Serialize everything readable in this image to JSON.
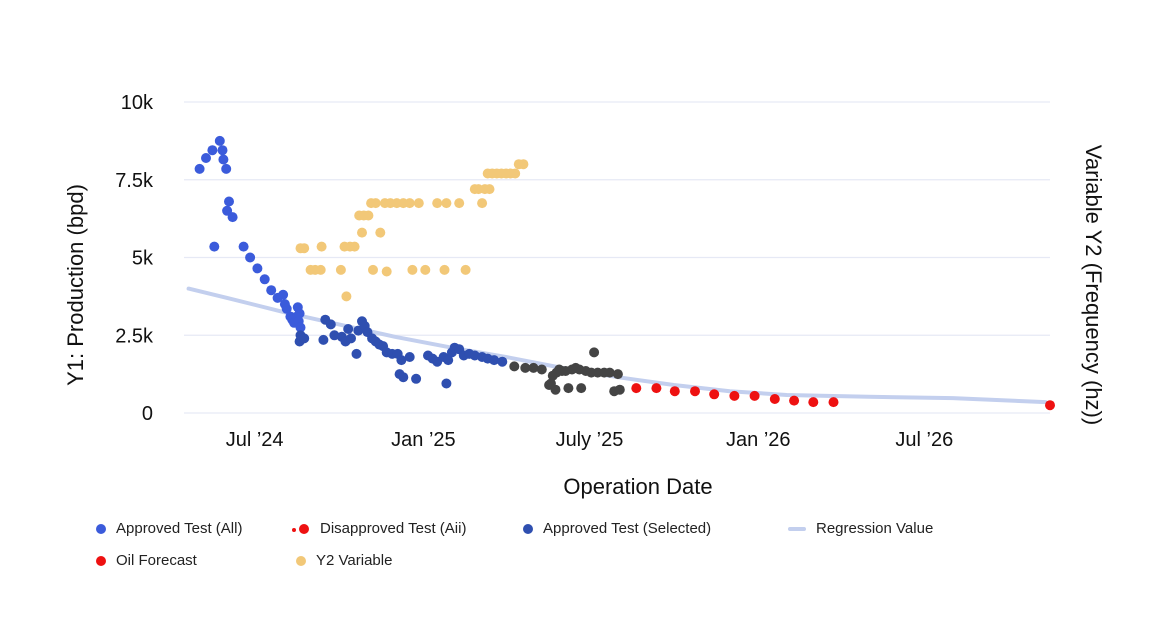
{
  "chart_data": {
    "type": "scatter",
    "xlabel": "Operation Date",
    "ylabel": "Y1: Production (bpd)",
    "y2label": "Variable Y2 (Frequency (hz))",
    "ylim": [
      0,
      10000
    ],
    "x_range": [
      "2024-04-15",
      "2026-11-15"
    ],
    "x_ticks": [
      {
        "date": "2024-07-01",
        "label": "Jul ’24"
      },
      {
        "date": "2025-01-01",
        "label": "Jan ’25"
      },
      {
        "date": "2025-07-01",
        "label": "July ’25"
      },
      {
        "date": "2026-01-01",
        "label": "Jan ’26"
      },
      {
        "date": "2026-07-01",
        "label": "Jul ’26"
      }
    ],
    "y_ticks": [
      {
        "value": 0,
        "label": "0"
      },
      {
        "value": 2500,
        "label": "2.5k"
      },
      {
        "value": 5000,
        "label": "5k"
      },
      {
        "value": 7500,
        "label": "7.5k"
      },
      {
        "value": 10000,
        "label": "10k"
      }
    ],
    "grid": true,
    "legend_position": "bottom",
    "series": [
      {
        "name": "Approved Test (All)",
        "legend_label": "Approved Test (All)",
        "color": "#3b5bdb",
        "marker": "dot",
        "points": [
          [
            "2024-05-02",
            7850
          ],
          [
            "2024-05-09",
            8200
          ],
          [
            "2024-05-16",
            8450
          ],
          [
            "2024-05-18",
            5350
          ],
          [
            "2024-05-24",
            8750
          ],
          [
            "2024-05-27",
            8450
          ],
          [
            "2024-05-28",
            8150
          ],
          [
            "2024-05-31",
            7850
          ],
          [
            "2024-06-01",
            6500
          ],
          [
            "2024-06-03",
            6800
          ],
          [
            "2024-06-07",
            6300
          ],
          [
            "2024-06-19",
            5350
          ],
          [
            "2024-06-26",
            5000
          ],
          [
            "2024-07-04",
            4650
          ],
          [
            "2024-07-12",
            4300
          ],
          [
            "2024-07-19",
            3950
          ],
          [
            "2024-07-26",
            3700
          ],
          [
            "2024-08-01",
            3800
          ],
          [
            "2024-08-03",
            3500
          ],
          [
            "2024-08-05",
            3350
          ],
          [
            "2024-08-09",
            3100
          ],
          [
            "2024-08-11",
            3000
          ],
          [
            "2024-08-13",
            2900
          ],
          [
            "2024-08-16",
            3100
          ],
          [
            "2024-08-17",
            3400
          ],
          [
            "2024-08-18",
            2950
          ],
          [
            "2024-08-19",
            3200
          ],
          [
            "2024-08-20",
            2750
          ]
        ]
      },
      {
        "name": "Disapproved Test (Aii)",
        "legend_label": "Disapproved Test (Aii)",
        "color": "#ee1111",
        "marker": "dot-pair",
        "points": []
      },
      {
        "name": "Approved Test (Selected)",
        "legend_label": "Approved Test (Selected)",
        "color": "#2f4fb0",
        "marker": "dot",
        "points": [
          [
            "2024-08-19",
            2300
          ],
          [
            "2024-08-20",
            2500
          ],
          [
            "2024-08-24",
            2400
          ],
          [
            "2024-09-14",
            2350
          ],
          [
            "2024-09-16",
            3000
          ],
          [
            "2024-09-22",
            2850
          ],
          [
            "2024-09-26",
            2500
          ],
          [
            "2024-10-04",
            2450
          ],
          [
            "2024-10-08",
            2300
          ],
          [
            "2024-10-11",
            2700
          ],
          [
            "2024-10-14",
            2400
          ],
          [
            "2024-10-20",
            1900
          ],
          [
            "2024-10-22",
            2650
          ],
          [
            "2024-10-26",
            2950
          ],
          [
            "2024-10-29",
            2800
          ],
          [
            "2024-11-01",
            2600
          ],
          [
            "2024-11-06",
            2400
          ],
          [
            "2024-11-10",
            2300
          ],
          [
            "2024-11-14",
            2200
          ],
          [
            "2024-11-18",
            2150
          ],
          [
            "2024-11-22",
            1950
          ],
          [
            "2024-11-28",
            1900
          ],
          [
            "2024-12-04",
            1900
          ],
          [
            "2024-12-06",
            1250
          ],
          [
            "2024-12-08",
            1700
          ],
          [
            "2024-12-10",
            1150
          ],
          [
            "2024-12-17",
            1800
          ],
          [
            "2024-12-24",
            1100
          ],
          [
            "2025-01-06",
            1850
          ],
          [
            "2025-01-11",
            1750
          ],
          [
            "2025-01-16",
            1650
          ],
          [
            "2025-01-23",
            1800
          ],
          [
            "2025-01-26",
            950
          ],
          [
            "2025-01-28",
            1700
          ],
          [
            "2025-02-01",
            1950
          ],
          [
            "2025-02-04",
            2100
          ],
          [
            "2025-02-09",
            2050
          ],
          [
            "2025-02-14",
            1850
          ],
          [
            "2025-02-20",
            1900
          ],
          [
            "2025-02-26",
            1850
          ],
          [
            "2025-03-06",
            1800
          ],
          [
            "2025-03-12",
            1750
          ],
          [
            "2025-03-19",
            1700
          ],
          [
            "2025-03-28",
            1650
          ]
        ]
      },
      {
        "name": "Approved Test (Selected) - dark",
        "color": "#444444",
        "marker": "dot",
        "points": [
          [
            "2025-04-10",
            1500
          ],
          [
            "2025-04-22",
            1450
          ],
          [
            "2025-05-01",
            1450
          ],
          [
            "2025-05-10",
            1400
          ],
          [
            "2025-05-18",
            900
          ],
          [
            "2025-05-20",
            950
          ],
          [
            "2025-05-22",
            1200
          ],
          [
            "2025-05-25",
            750
          ],
          [
            "2025-05-26",
            1300
          ],
          [
            "2025-05-29",
            1400
          ],
          [
            "2025-06-01",
            1350
          ],
          [
            "2025-06-05",
            1350
          ],
          [
            "2025-06-08",
            800
          ],
          [
            "2025-06-12",
            1400
          ],
          [
            "2025-06-16",
            1450
          ],
          [
            "2025-06-20",
            1400
          ],
          [
            "2025-06-22",
            800
          ],
          [
            "2025-06-27",
            1350
          ],
          [
            "2025-07-03",
            1300
          ],
          [
            "2025-07-06",
            1950
          ],
          [
            "2025-07-10",
            1300
          ],
          [
            "2025-07-17",
            1300
          ],
          [
            "2025-07-23",
            1300
          ],
          [
            "2025-07-28",
            700
          ],
          [
            "2025-08-01",
            1250
          ],
          [
            "2025-08-03",
            750
          ]
        ]
      },
      {
        "name": "Regression Value",
        "legend_label": "Regression Value",
        "color": "#c3cfee",
        "marker": "line",
        "points": [
          [
            "2024-04-20",
            4000
          ],
          [
            "2024-06-01",
            3700
          ],
          [
            "2024-08-01",
            3250
          ],
          [
            "2024-10-01",
            2850
          ],
          [
            "2024-12-01",
            2450
          ],
          [
            "2025-02-01",
            2100
          ],
          [
            "2025-04-01",
            1800
          ],
          [
            "2025-06-01",
            1450
          ],
          [
            "2025-08-01",
            1150
          ],
          [
            "2025-10-01",
            900
          ],
          [
            "2025-12-01",
            700
          ],
          [
            "2026-02-01",
            580
          ],
          [
            "2026-05-01",
            520
          ],
          [
            "2026-08-01",
            480
          ],
          [
            "2026-11-10",
            350
          ]
        ]
      },
      {
        "name": "Oil Forecast",
        "legend_label": "Oil Forecast",
        "color": "#ee1111",
        "marker": "dot",
        "points": [
          [
            "2025-08-21",
            800
          ],
          [
            "2025-09-12",
            800
          ],
          [
            "2025-10-02",
            700
          ],
          [
            "2025-10-24",
            700
          ],
          [
            "2025-11-14",
            600
          ],
          [
            "2025-12-06",
            550
          ],
          [
            "2025-12-28",
            550
          ],
          [
            "2026-01-19",
            450
          ],
          [
            "2026-02-09",
            400
          ],
          [
            "2026-03-02",
            350
          ],
          [
            "2026-03-24",
            350
          ],
          [
            "2026-11-15",
            250
          ]
        ]
      },
      {
        "name": "Y2 Variable",
        "legend_label": "Y2 Variable",
        "color": "#f2c878",
        "marker": "dot",
        "points": [
          [
            "2024-08-20",
            5300
          ],
          [
            "2024-08-24",
            5300
          ],
          [
            "2024-08-31",
            4600
          ],
          [
            "2024-09-05",
            4600
          ],
          [
            "2024-09-11",
            4600
          ],
          [
            "2024-09-12",
            5350
          ],
          [
            "2024-10-03",
            4600
          ],
          [
            "2024-10-07",
            5350
          ],
          [
            "2024-10-09",
            3750
          ],
          [
            "2024-10-13",
            5350
          ],
          [
            "2024-10-18",
            5350
          ],
          [
            "2024-10-23",
            6350
          ],
          [
            "2024-10-26",
            5800
          ],
          [
            "2024-10-28",
            6350
          ],
          [
            "2024-11-02",
            6350
          ],
          [
            "2024-11-05",
            6750
          ],
          [
            "2024-11-07",
            4600
          ],
          [
            "2024-11-10",
            6750
          ],
          [
            "2024-11-15",
            5800
          ],
          [
            "2024-11-20",
            6750
          ],
          [
            "2024-11-22",
            4550
          ],
          [
            "2024-11-26",
            6750
          ],
          [
            "2024-12-03",
            6750
          ],
          [
            "2024-12-10",
            6750
          ],
          [
            "2024-12-17",
            6750
          ],
          [
            "2024-12-20",
            4600
          ],
          [
            "2024-12-27",
            6750
          ],
          [
            "2025-01-03",
            4600
          ],
          [
            "2025-01-16",
            6750
          ],
          [
            "2025-01-24",
            4600
          ],
          [
            "2025-01-26",
            6750
          ],
          [
            "2025-02-09",
            6750
          ],
          [
            "2025-02-16",
            4600
          ],
          [
            "2025-02-26",
            7200
          ],
          [
            "2025-03-02",
            7200
          ],
          [
            "2025-03-06",
            6750
          ],
          [
            "2025-03-09",
            7200
          ],
          [
            "2025-03-12",
            7700
          ],
          [
            "2025-03-14",
            7200
          ],
          [
            "2025-03-17",
            7700
          ],
          [
            "2025-03-22",
            7700
          ],
          [
            "2025-03-27",
            7700
          ],
          [
            "2025-04-01",
            7700
          ],
          [
            "2025-04-06",
            7700
          ],
          [
            "2025-04-11",
            7700
          ],
          [
            "2025-04-15",
            8000
          ],
          [
            "2025-04-20",
            8000
          ]
        ]
      }
    ]
  }
}
